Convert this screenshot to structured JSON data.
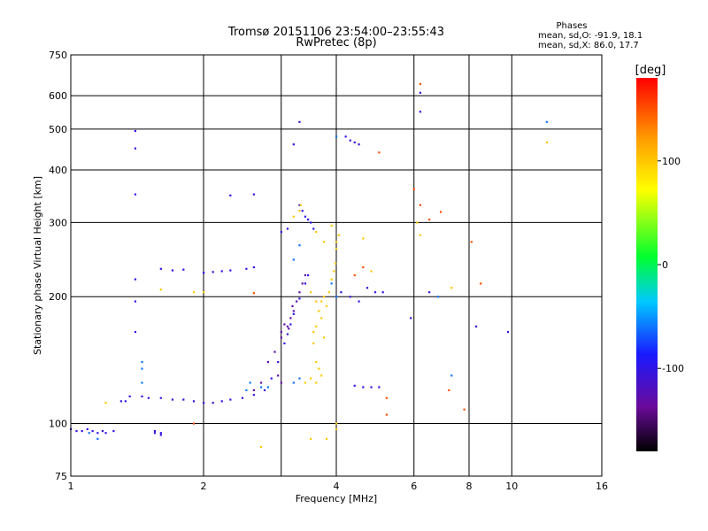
{
  "chart_data": {
    "type": "scatter",
    "title": "Tromsø 20151106 23:54:00–23:55:43",
    "subtitle": "RwPretec (8p)",
    "xlabel": "Frequency [MHz]",
    "ylabel": "Stationary phase Virtual Height [km]",
    "x_scale": "log",
    "y_scale": "log",
    "xlim": [
      1,
      16
    ],
    "ylim": [
      75,
      750
    ],
    "x_ticks": [
      1,
      2,
      4,
      6,
      8,
      10,
      16
    ],
    "x_grid": [
      1,
      2,
      3,
      4,
      6,
      8,
      10,
      16
    ],
    "y_ticks": [
      75,
      100,
      200,
      300,
      400,
      500,
      600,
      750
    ],
    "grid": true,
    "phases_title": "Phases",
    "phases_lines": [
      "mean, sd,O: -91.9, 18.1",
      "mean, sd,X:  86.0, 17.7"
    ],
    "colorbar": {
      "label": "[deg]",
      "min": -180,
      "max": 180,
      "ticks": [
        -100,
        0,
        100
      ],
      "colors": [
        "#000000",
        "#6a0a9a",
        "#1a1aff",
        "#00c8ff",
        "#00ff30",
        "#ffff00",
        "#ff9a00",
        "#ff0000"
      ]
    },
    "series": [
      {
        "phase": -100,
        "points": [
          [
            1.0,
            97
          ],
          [
            1.03,
            96
          ],
          [
            1.06,
            96
          ],
          [
            1.09,
            97
          ],
          [
            1.12,
            96
          ],
          [
            1.15,
            95
          ],
          [
            1.18,
            96
          ],
          [
            1.2,
            95
          ],
          [
            1.25,
            96
          ],
          [
            1.55,
            96
          ],
          [
            1.6,
            95
          ],
          [
            1.3,
            113
          ],
          [
            1.33,
            113
          ],
          [
            1.36,
            116
          ],
          [
            1.45,
            116
          ],
          [
            1.5,
            115
          ],
          [
            1.6,
            115
          ],
          [
            1.7,
            114
          ],
          [
            1.8,
            114
          ],
          [
            1.9,
            113
          ],
          [
            2.0,
            112
          ],
          [
            2.1,
            112
          ],
          [
            2.2,
            113
          ],
          [
            2.3,
            114
          ],
          [
            2.45,
            115
          ],
          [
            2.6,
            117
          ],
          [
            2.75,
            120
          ],
          [
            2.85,
            128
          ],
          [
            2.95,
            140
          ],
          [
            3.05,
            155
          ],
          [
            3.1,
            163
          ],
          [
            3.15,
            172
          ],
          [
            3.2,
            182
          ],
          [
            3.3,
            198
          ],
          [
            3.4,
            215
          ],
          [
            3.45,
            225
          ],
          [
            3.3,
            330
          ],
          [
            3.35,
            320
          ],
          [
            3.4,
            310
          ],
          [
            3.5,
            300
          ],
          [
            3.55,
            290
          ],
          [
            3.45,
            305
          ],
          [
            2.0,
            228
          ],
          [
            2.1,
            229
          ],
          [
            2.2,
            230
          ],
          [
            2.3,
            231
          ],
          [
            2.5,
            233
          ],
          [
            2.6,
            235
          ],
          [
            1.6,
            233
          ],
          [
            1.7,
            231
          ],
          [
            1.8,
            232
          ],
          [
            1.4,
            495
          ],
          [
            1.4,
            450
          ],
          [
            1.4,
            350
          ],
          [
            1.4,
            220
          ],
          [
            1.4,
            195
          ],
          [
            1.4,
            165
          ],
          [
            3.2,
            460
          ],
          [
            3.3,
            520
          ],
          [
            4.3,
            470
          ],
          [
            4.4,
            465
          ],
          [
            4.5,
            460
          ],
          [
            4.2,
            480
          ],
          [
            4.1,
            205
          ],
          [
            4.3,
            200
          ],
          [
            4.5,
            195
          ],
          [
            4.7,
            210
          ],
          [
            4.9,
            205
          ],
          [
            5.1,
            205
          ],
          [
            4.4,
            123
          ],
          [
            4.6,
            122
          ],
          [
            4.8,
            122
          ],
          [
            5.0,
            122
          ],
          [
            6.2,
            610
          ],
          [
            6.2,
            550
          ],
          [
            8.3,
            170
          ],
          [
            9.8,
            165
          ],
          [
            2.3,
            348
          ],
          [
            2.6,
            350
          ],
          [
            3.0,
            285
          ],
          [
            3.1,
            290
          ],
          [
            1.55,
            95
          ],
          [
            1.6,
            94
          ],
          [
            5.9,
            178
          ],
          [
            6.5,
            205
          ]
        ]
      },
      {
        "phase": -130,
        "points": [
          [
            2.8,
            140
          ],
          [
            2.9,
            148
          ],
          [
            3.0,
            160
          ],
          [
            3.1,
            170
          ],
          [
            3.15,
            178
          ],
          [
            3.2,
            185
          ],
          [
            3.25,
            195
          ],
          [
            3.3,
            205
          ],
          [
            3.35,
            215
          ],
          [
            3.4,
            225
          ],
          [
            2.95,
            130
          ],
          [
            3.0,
            125
          ],
          [
            2.6,
            120
          ],
          [
            2.7,
            125
          ],
          [
            3.0,
            165
          ],
          [
            3.05,
            172
          ],
          [
            3.12,
            168
          ],
          [
            3.18,
            190
          ]
        ]
      },
      {
        "phase": -60,
        "points": [
          [
            1.45,
            140
          ],
          [
            1.45,
            135
          ],
          [
            1.45,
            125
          ],
          [
            2.5,
            120
          ],
          [
            2.55,
            125
          ],
          [
            2.7,
            122
          ],
          [
            2.8,
            122
          ],
          [
            3.2,
            125
          ],
          [
            3.3,
            128
          ],
          [
            3.3,
            265
          ],
          [
            3.2,
            245
          ],
          [
            4.0,
            480
          ],
          [
            1.1,
            95
          ],
          [
            1.15,
            92
          ],
          [
            3.9,
            215
          ],
          [
            4.0,
            200
          ],
          [
            7.3,
            130
          ],
          [
            12.0,
            520
          ],
          [
            6.8,
            200
          ]
        ]
      },
      {
        "phase": 100,
        "points": [
          [
            3.5,
            205
          ],
          [
            3.6,
            195
          ],
          [
            3.65,
            185
          ],
          [
            3.7,
            178
          ],
          [
            3.6,
            170
          ],
          [
            3.55,
            165
          ],
          [
            3.7,
            195
          ],
          [
            3.75,
            200
          ],
          [
            3.8,
            190
          ],
          [
            3.85,
            205
          ],
          [
            3.9,
            220
          ],
          [
            3.95,
            230
          ],
          [
            3.98,
            240
          ],
          [
            4.0,
            260
          ],
          [
            4.0,
            270
          ],
          [
            4.05,
            280
          ],
          [
            3.6,
            140
          ],
          [
            3.65,
            135
          ],
          [
            3.7,
            130
          ],
          [
            3.5,
            128
          ],
          [
            3.4,
            125
          ],
          [
            3.55,
            155
          ],
          [
            3.75,
            160
          ],
          [
            3.6,
            125
          ],
          [
            3.3,
            320
          ],
          [
            3.32,
            330
          ],
          [
            3.2,
            310
          ],
          [
            3.9,
            295
          ],
          [
            3.6,
            285
          ],
          [
            3.75,
            270
          ],
          [
            1.9,
            205
          ],
          [
            2.0,
            205
          ],
          [
            1.6,
            208
          ],
          [
            1.2,
            112
          ],
          [
            2.7,
            88
          ],
          [
            3.5,
            92
          ],
          [
            3.8,
            92
          ],
          [
            4.0,
            100
          ],
          [
            4.0,
            97
          ],
          [
            7.3,
            210
          ],
          [
            12.0,
            465
          ],
          [
            6.1,
            300
          ],
          [
            6.2,
            280
          ],
          [
            4.6,
            275
          ],
          [
            4.8,
            230
          ]
        ]
      },
      {
        "phase": 150,
        "points": [
          [
            4.4,
            225
          ],
          [
            4.6,
            235
          ],
          [
            6.2,
            640
          ],
          [
            6.0,
            360
          ],
          [
            6.2,
            330
          ],
          [
            6.5,
            305
          ],
          [
            5.0,
            440
          ],
          [
            8.1,
            270
          ],
          [
            8.5,
            215
          ],
          [
            5.2,
            115
          ],
          [
            5.2,
            105
          ],
          [
            7.8,
            108
          ],
          [
            7.2,
            120
          ],
          [
            2.6,
            204
          ],
          [
            1.9,
            100
          ],
          [
            6.9,
            318
          ]
        ]
      }
    ]
  }
}
